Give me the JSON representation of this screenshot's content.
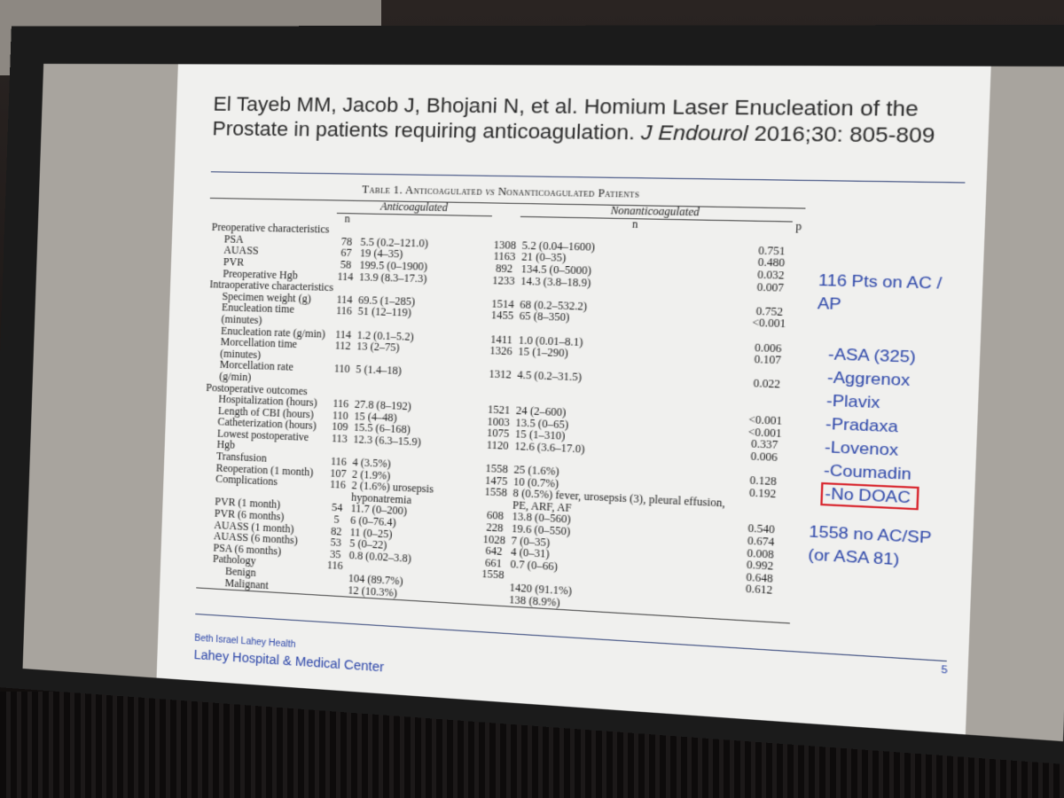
{
  "header": {
    "citation": [
      "El Tayeb MM, Jacob J, Bhojani N, et al. Homium Laser Enucleation of the Prostate in patients requiring anticoagulation. ",
      "J Endourol",
      " 2016;30: 805-809"
    ]
  },
  "table": {
    "title": [
      "Table 1. Anticoagulated ",
      "vs",
      " Nonanticoagulated Patients"
    ],
    "groups": [
      "Anticoagulated",
      "Nonanticoagulated"
    ],
    "columns": [
      "n",
      "n",
      "p"
    ],
    "sections": [
      {
        "title": "Preoperative characteristics",
        "rows": [
          {
            "label": "PSA",
            "n1": "78",
            "v1": "5.5 (0.2–121.0)",
            "n2": "1308",
            "v2": "5.2 (0.04–1600)",
            "p": "0.751"
          },
          {
            "label": "AUASS",
            "n1": "67",
            "v1": "19 (4–35)",
            "n2": "1163",
            "v2": "21 (0–35)",
            "p": "0.480"
          },
          {
            "label": "PVR",
            "n1": "58",
            "v1": "199.5 (0–1900)",
            "n2": "892",
            "v2": "134.5 (0–5000)",
            "p": "0.032"
          },
          {
            "label": "Preoperative Hgb",
            "n1": "114",
            "v1": "13.9 (8.3–17.3)",
            "n2": "1233",
            "v2": "14.3 (3.8–18.9)",
            "p": "0.007"
          }
        ]
      },
      {
        "title": "Intraoperative characteristics",
        "rows": [
          {
            "label": "Specimen weight (g)",
            "n1": "114",
            "v1": "69.5 (1–285)",
            "n2": "1514",
            "v2": "68 (0.2–532.2)",
            "p": "0.752"
          },
          {
            "label": "Enucleation time (minutes)",
            "n1": "116",
            "v1": "51 (12–119)",
            "n2": "1455",
            "v2": "65 (8–350)",
            "p": "<0.001"
          },
          {
            "label": "Enucleation rate (g/min)",
            "n1": "114",
            "v1": "1.2 (0.1–5.2)",
            "n2": "1411",
            "v2": "1.0 (0.01–8.1)",
            "p": "0.006"
          },
          {
            "label": "Morcellation time (minutes)",
            "n1": "112",
            "v1": "13 (2–75)",
            "n2": "1326",
            "v2": "15 (1–290)",
            "p": "0.107"
          },
          {
            "label": "Morcellation rate (g/min)",
            "n1": "110",
            "v1": "5 (1.4–18)",
            "n2": "1312",
            "v2": "4.5 (0.2–31.5)",
            "p": "0.022"
          }
        ]
      },
      {
        "title": "Postoperative outcomes",
        "rows": [
          {
            "label": "Hospitalization (hours)",
            "n1": "116",
            "v1": "27.8 (8–192)",
            "n2": "1521",
            "v2": "24 (2–600)",
            "p": "<0.001"
          },
          {
            "label": "Length of CBI (hours)",
            "n1": "110",
            "v1": "15 (4–48)",
            "n2": "1003",
            "v2": "13.5 (0–65)",
            "p": "<0.001"
          },
          {
            "label": "Catheterization (hours)",
            "n1": "109",
            "v1": "15.5 (6–168)",
            "n2": "1075",
            "v2": "15 (1–310)",
            "p": "0.337"
          },
          {
            "label": "Lowest postoperative Hgb",
            "n1": "113",
            "v1": "12.3 (6.3–15.9)",
            "n2": "1120",
            "v2": "12.6 (3.6–17.0)",
            "p": "0.006"
          },
          {
            "label": "Transfusion",
            "n1": "116",
            "v1": "4 (3.5%)",
            "n2": "1558",
            "v2": "25 (1.6%)",
            "p": "0.128"
          },
          {
            "label": "Reoperation (1 month)",
            "n1": "107",
            "v1": "2 (1.9%)",
            "n2": "1475",
            "v2": "10 (0.7%)",
            "p": "0.192"
          },
          {
            "label": "Complications",
            "n1": "116",
            "v1": "2 (1.6%) urosepsis hyponatremia",
            "n2": "1558",
            "v2": "8 (0.5%) fever, urosepsis (3), pleural effusion, PE, ARF, AF"
          },
          {
            "label": "PVR (1 month)",
            "n1": "54",
            "v1": "11.7 (0–200)",
            "n2": "608",
            "v2": "13.8 (0–560)",
            "p": "0.540"
          },
          {
            "label": "PVR (6 months)",
            "n1": "5",
            "v1": "6 (0–76.4)",
            "n2": "228",
            "v2": "19.6 (0–550)",
            "p": "0.674"
          },
          {
            "label": "AUASS (1 month)",
            "n1": "82",
            "v1": "11 (0–25)",
            "n2": "1028",
            "v2": "7 (0–35)",
            "p": "0.008"
          },
          {
            "label": "AUASS (6 months)",
            "n1": "53",
            "v1": "5 (0–22)",
            "n2": "642",
            "v2": "4 (0–31)",
            "p": "0.992"
          },
          {
            "label": "PSA (6 months)",
            "n1": "35",
            "v1": "0.8 (0.02–3.8)",
            "n2": "661",
            "v2": "0.7 (0–66)",
            "p": "0.648"
          },
          {
            "label": "Pathology",
            "n1": "116",
            "n2": "1558",
            "p": "0.612",
            "rows": [
              {
                "label": "Benign",
                "v1": "104 (89.7%)",
                "v2": "1420 (91.1%)"
              },
              {
                "label": "Malignant",
                "v1": "12 (10.3%)",
                "v2": "138 (8.9%)"
              }
            ]
          }
        ]
      }
    ]
  },
  "sidebar": {
    "heading": "116 Pts on AC / AP",
    "items": [
      "-ASA (325)",
      "-Aggrenox",
      "-Plavix",
      "-Pradaxa",
      "-Lovenox",
      "-Coumadin",
      "-No DOAC"
    ],
    "footer": "1558 no AC/SP (or ASA 81)"
  },
  "footer": {
    "org": "Beth Israel Lahey Health",
    "hospital": "Lahey Hospital & Medical Center",
    "page": "5"
  }
}
